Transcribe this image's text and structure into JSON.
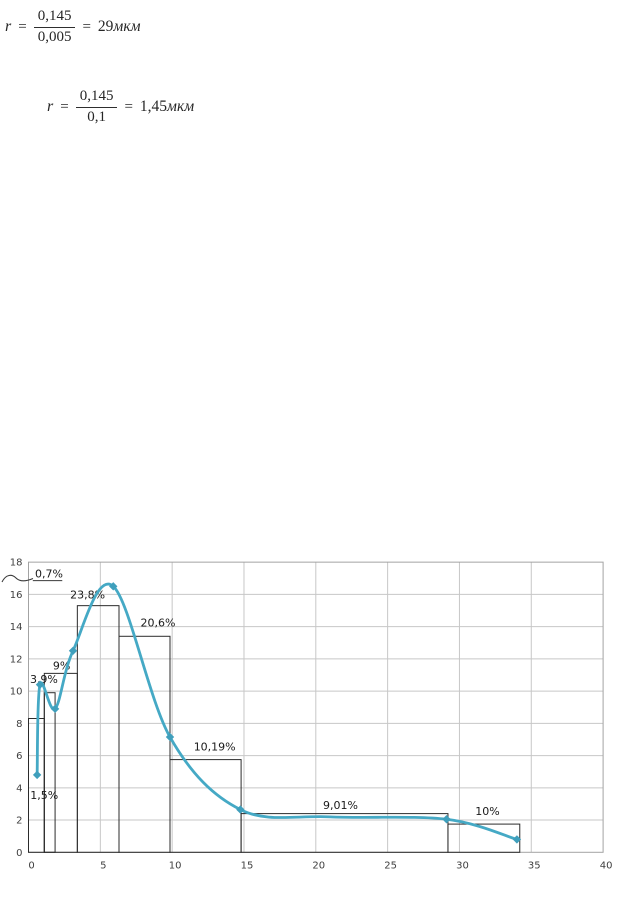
{
  "formulas": [
    {
      "var": "r",
      "eq": "=",
      "numerator": "0,145",
      "denominator": "0,005",
      "eq2": "=",
      "result": "29",
      "unit": "мкм"
    },
    {
      "var": "r",
      "eq": "=",
      "numerator": "0,145",
      "denominator": "0,1",
      "eq2": "=",
      "result": "1,45",
      "unit": "мкм"
    }
  ],
  "chart_data": {
    "type": "histogram+line",
    "title": "",
    "xlabel": "",
    "ylabel": "",
    "xlim": [
      0,
      40
    ],
    "ylim": [
      0,
      18
    ],
    "x_ticks": [
      0,
      5,
      10,
      15,
      20,
      25,
      30,
      35,
      40
    ],
    "y_ticks": [
      0,
      2,
      4,
      6,
      8,
      10,
      12,
      14,
      16,
      18
    ],
    "grid": true,
    "legend": "none",
    "colors": {
      "line": "#45a9c5",
      "marker": "#3f9fbc",
      "bar_outline": "#2b2b2b",
      "grid": "#c7c7c7",
      "border": "#a3a3a3",
      "tick_text": "#3f3f3f",
      "label_text": "#1a1a1a",
      "annotation_ink": "#3a3a3a"
    },
    "bars": [
      {
        "x0": 0,
        "x1": 1.1,
        "height": 8.3,
        "label": "1,5%",
        "label_x": 0.12,
        "label_y": 3.3
      },
      {
        "x0": 1.1,
        "x1": 1.85,
        "height": 9.9,
        "label": "3,9%",
        "label_x": 0.1,
        "label_y": 10.5
      },
      {
        "x0": 1.1,
        "x1": 3.4,
        "height": 11.1,
        "label": "9%",
        "label_x": 1.7,
        "label_y": 11.35
      },
      {
        "x0": 3.4,
        "x1": 6.3,
        "height": 15.3,
        "label": "23,8%",
        "label_x": 2.9,
        "label_y": 15.75
      },
      {
        "x0": 6.3,
        "x1": 9.85,
        "height": 13.4,
        "label": "20,6%",
        "label_x": 7.8,
        "label_y": 14.0
      },
      {
        "x0": 9.85,
        "x1": 14.8,
        "height": 5.75,
        "label": "10,19%",
        "label_x": 11.5,
        "label_y": 6.3
      },
      {
        "x0": 14.8,
        "x1": 29.2,
        "height": 2.4,
        "label": "9,01%",
        "label_x": 20.5,
        "label_y": 2.7
      },
      {
        "x0": 29.2,
        "x1": 34.2,
        "height": 1.75,
        "label": "10%",
        "label_x": 31.1,
        "label_y": 2.3
      }
    ],
    "annotation": {
      "text": "0,7%",
      "x": 0.45,
      "y": 17.05,
      "underline_from": 0.3,
      "underline_to": 2.35,
      "underline_y": 16.85,
      "squiggle": true
    },
    "series": [
      {
        "name": "size-distribution-curve",
        "points": [
          {
            "x": 0.6,
            "y": 4.8,
            "marker": true
          },
          {
            "x": 0.8,
            "y": 10.4,
            "marker": true
          },
          {
            "x": 1.85,
            "y": 8.9,
            "marker": true
          },
          {
            "x": 3.1,
            "y": 12.5,
            "marker": true
          },
          {
            "x": 5.9,
            "y": 16.5,
            "marker": true
          },
          {
            "x": 9.85,
            "y": 7.15,
            "marker": true
          },
          {
            "x": 14.75,
            "y": 2.65,
            "marker": true
          },
          {
            "x": 21,
            "y": 2.2,
            "marker": false
          },
          {
            "x": 29.1,
            "y": 2.05,
            "marker": true
          },
          {
            "x": 34,
            "y": 0.8,
            "marker": true
          }
        ]
      }
    ]
  }
}
